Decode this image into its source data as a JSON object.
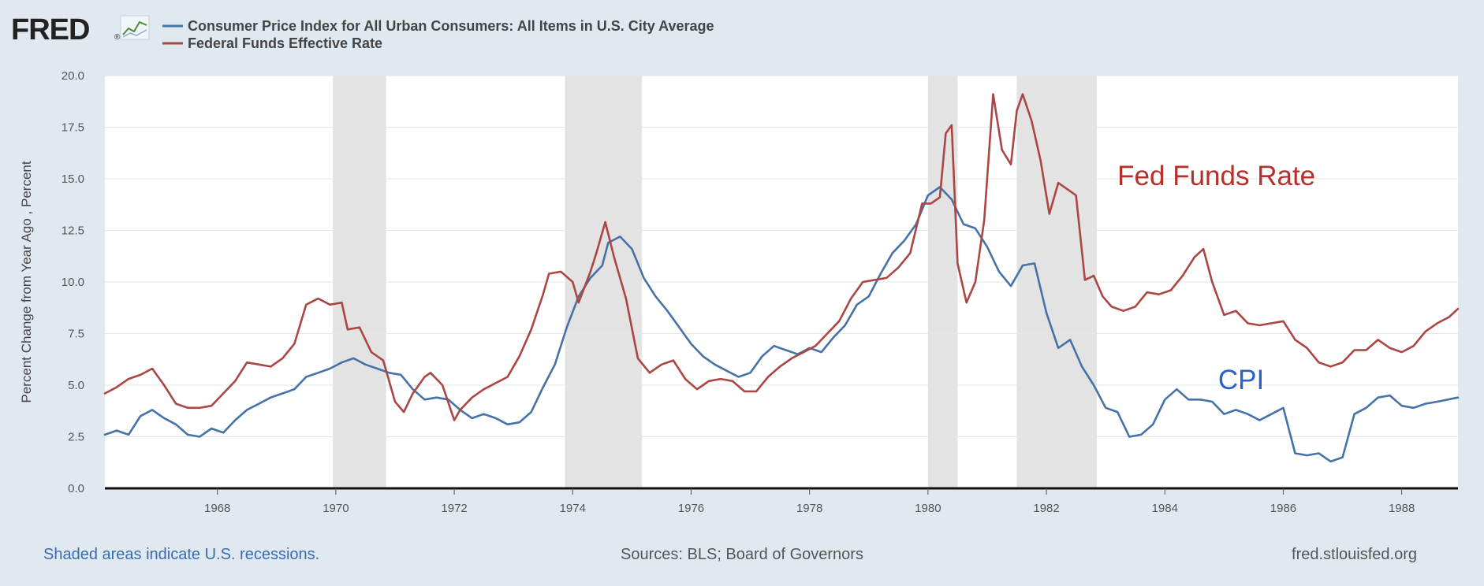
{
  "header": {
    "logo_text": "FRED",
    "logo_mark": "®",
    "logo_icon": "fred-chart-icon",
    "legend": [
      {
        "label": "Consumer Price Index for All Urban Consumers: All Items in U.S. City Average",
        "color": "#4572a7"
      },
      {
        "label": "Federal Funds Effective Rate",
        "color": "#aa4643"
      }
    ]
  },
  "footer": {
    "recession_note": "Shaded areas indicate U.S. recessions.",
    "sources": "Sources: BLS; Board of Governors",
    "site": "fred.stlouisfed.org"
  },
  "colors": {
    "background": "#e1e9f0",
    "plot": "#ffffff",
    "grid": "#e6e6e6",
    "recession": "#e3e3e3",
    "cpi": "#4572a7",
    "fedfunds": "#aa4643",
    "annot_fed": "#b5302a",
    "annot_cpi": "#2a62c9",
    "footer_link": "#3a6bb0",
    "footer_text": "#555555"
  },
  "chart_data": {
    "type": "line",
    "ylabel": "Percent Change from Year Ago , Percent",
    "xlabel": "",
    "xlim": [
      1966.1,
      1988.95
    ],
    "ylim": [
      0,
      20
    ],
    "yticks": [
      "0.0",
      "2.5",
      "5.0",
      "7.5",
      "10.0",
      "12.5",
      "15.0",
      "17.5",
      "20.0"
    ],
    "ytick_values": [
      0,
      2.5,
      5,
      7.5,
      10,
      12.5,
      15,
      17.5,
      20
    ],
    "xticks": [
      "1968",
      "1970",
      "1972",
      "1974",
      "1976",
      "1978",
      "1980",
      "1982",
      "1984",
      "1986",
      "1988"
    ],
    "xtick_values": [
      1968,
      1970,
      1972,
      1974,
      1976,
      1978,
      1980,
      1982,
      1984,
      1986,
      1988
    ],
    "grid": true,
    "recessions": [
      [
        1969.95,
        1970.85
      ],
      [
        1973.87,
        1975.17
      ],
      [
        1980.0,
        1980.5
      ],
      [
        1981.5,
        1982.85
      ]
    ],
    "annotations": [
      {
        "text": "Fed Funds Rate",
        "x": 1983.2,
        "y": 14.7,
        "series": "fedfunds"
      },
      {
        "text": "CPI",
        "x": 1984.9,
        "y": 4.8,
        "series": "cpi"
      }
    ],
    "series": [
      {
        "key": "cpi",
        "x": [
          1966.1,
          1966.3,
          1966.5,
          1966.7,
          1966.9,
          1967.1,
          1967.3,
          1967.5,
          1967.7,
          1967.9,
          1968.1,
          1968.3,
          1968.5,
          1968.7,
          1968.9,
          1969.1,
          1969.3,
          1969.5,
          1969.7,
          1969.9,
          1970.1,
          1970.3,
          1970.5,
          1970.7,
          1970.9,
          1971.1,
          1971.3,
          1971.5,
          1971.7,
          1971.9,
          1972.1,
          1972.3,
          1972.5,
          1972.7,
          1972.9,
          1973.1,
          1973.3,
          1973.5,
          1973.7,
          1973.9,
          1974.1,
          1974.3,
          1974.5,
          1974.6,
          1974.8,
          1975.0,
          1975.2,
          1975.4,
          1975.6,
          1975.8,
          1976.0,
          1976.2,
          1976.4,
          1976.6,
          1976.8,
          1977.0,
          1977.2,
          1977.4,
          1977.6,
          1977.8,
          1978.0,
          1978.2,
          1978.4,
          1978.6,
          1978.8,
          1979.0,
          1979.2,
          1979.4,
          1979.6,
          1979.8,
          1980.0,
          1980.2,
          1980.4,
          1980.6,
          1980.8,
          1981.0,
          1981.2,
          1981.4,
          1981.6,
          1981.8,
          1982.0,
          1982.2,
          1982.4,
          1982.6,
          1982.8,
          1983.0,
          1983.2,
          1983.4,
          1983.6,
          1983.8,
          1984.0,
          1984.2,
          1984.4,
          1984.6,
          1984.8,
          1985.0,
          1985.2,
          1985.4,
          1985.6,
          1985.8,
          1986.0,
          1986.2,
          1986.4,
          1986.6,
          1986.8,
          1987.0,
          1987.2,
          1987.4,
          1987.6,
          1987.8,
          1988.0,
          1988.2,
          1988.4,
          1988.6,
          1988.95
        ],
        "values": [
          2.6,
          2.8,
          2.6,
          3.5,
          3.8,
          3.4,
          3.1,
          2.6,
          2.5,
          2.9,
          2.7,
          3.3,
          3.8,
          4.1,
          4.4,
          4.6,
          4.8,
          5.4,
          5.6,
          5.8,
          6.1,
          6.3,
          6.0,
          5.8,
          5.6,
          5.5,
          4.8,
          4.3,
          4.4,
          4.3,
          3.8,
          3.4,
          3.6,
          3.4,
          3.1,
          3.2,
          3.7,
          4.9,
          6.0,
          7.8,
          9.3,
          10.2,
          10.8,
          11.9,
          12.2,
          11.6,
          10.2,
          9.3,
          8.6,
          7.8,
          7.0,
          6.4,
          6.0,
          5.7,
          5.4,
          5.6,
          6.4,
          6.9,
          6.7,
          6.5,
          6.8,
          6.6,
          7.3,
          7.9,
          8.9,
          9.3,
          10.4,
          11.4,
          12.0,
          12.8,
          14.2,
          14.6,
          14.0,
          12.8,
          12.6,
          11.7,
          10.5,
          9.8,
          10.8,
          10.9,
          8.5,
          6.8,
          7.2,
          5.9,
          5.0,
          3.9,
          3.7,
          2.5,
          2.6,
          3.1,
          4.3,
          4.8,
          4.3,
          4.3,
          4.2,
          3.6,
          3.8,
          3.6,
          3.3,
          3.6,
          3.9,
          1.7,
          1.6,
          1.7,
          1.3,
          1.5,
          3.6,
          3.9,
          4.4,
          4.5,
          4.0,
          3.9,
          4.1,
          4.2,
          4.4
        ]
      },
      {
        "key": "fedfunds",
        "x": [
          1966.1,
          1966.3,
          1966.5,
          1966.7,
          1966.9,
          1967.1,
          1967.3,
          1967.5,
          1967.7,
          1967.9,
          1968.1,
          1968.3,
          1968.5,
          1968.7,
          1968.9,
          1969.1,
          1969.3,
          1969.5,
          1969.7,
          1969.9,
          1970.1,
          1970.2,
          1970.4,
          1970.6,
          1970.8,
          1971.0,
          1971.15,
          1971.3,
          1971.5,
          1971.6,
          1971.8,
          1972.0,
          1972.1,
          1972.3,
          1972.5,
          1972.7,
          1972.9,
          1973.1,
          1973.3,
          1973.5,
          1973.6,
          1973.8,
          1974.0,
          1974.1,
          1974.3,
          1974.4,
          1974.55,
          1974.7,
          1974.9,
          1975.1,
          1975.3,
          1975.5,
          1975.7,
          1975.9,
          1976.1,
          1976.3,
          1976.5,
          1976.7,
          1976.9,
          1977.1,
          1977.3,
          1977.5,
          1977.7,
          1977.9,
          1978.1,
          1978.3,
          1978.5,
          1978.7,
          1978.9,
          1979.1,
          1979.3,
          1979.5,
          1979.7,
          1979.9,
          1980.05,
          1980.2,
          1980.3,
          1980.4,
          1980.5,
          1980.65,
          1980.8,
          1980.95,
          1981.1,
          1981.25,
          1981.4,
          1981.5,
          1981.6,
          1981.75,
          1981.9,
          1982.05,
          1982.2,
          1982.35,
          1982.5,
          1982.65,
          1982.8,
          1982.95,
          1983.1,
          1983.3,
          1983.5,
          1983.7,
          1983.9,
          1984.1,
          1984.3,
          1984.5,
          1984.65,
          1984.8,
          1985.0,
          1985.2,
          1985.4,
          1985.6,
          1985.8,
          1986.0,
          1986.2,
          1986.4,
          1986.6,
          1986.8,
          1987.0,
          1987.2,
          1987.4,
          1987.6,
          1987.8,
          1988.0,
          1988.2,
          1988.4,
          1988.6,
          1988.8,
          1988.95
        ],
        "values": [
          4.6,
          4.9,
          5.3,
          5.5,
          5.8,
          5.0,
          4.1,
          3.9,
          3.9,
          4.0,
          4.6,
          5.2,
          6.1,
          6.0,
          5.9,
          6.3,
          7.0,
          8.9,
          9.2,
          8.9,
          9.0,
          7.7,
          7.8,
          6.6,
          6.2,
          4.2,
          3.7,
          4.6,
          5.4,
          5.6,
          5.0,
          3.3,
          3.8,
          4.4,
          4.8,
          5.1,
          5.4,
          6.4,
          7.7,
          9.4,
          10.4,
          10.5,
          10.0,
          9.0,
          10.5,
          11.4,
          12.9,
          11.2,
          9.2,
          6.3,
          5.6,
          6.0,
          6.2,
          5.3,
          4.8,
          5.2,
          5.3,
          5.2,
          4.7,
          4.7,
          5.4,
          5.9,
          6.3,
          6.6,
          6.9,
          7.5,
          8.1,
          9.2,
          10.0,
          10.1,
          10.2,
          10.7,
          11.4,
          13.8,
          13.8,
          14.1,
          17.2,
          17.6,
          10.9,
          9.0,
          10.0,
          13.0,
          19.1,
          16.4,
          15.7,
          18.3,
          19.1,
          17.8,
          15.9,
          13.3,
          14.8,
          14.5,
          14.2,
          10.1,
          10.3,
          9.3,
          8.8,
          8.6,
          8.8,
          9.5,
          9.4,
          9.6,
          10.3,
          11.2,
          11.6,
          10.0,
          8.4,
          8.6,
          8.0,
          7.9,
          8.0,
          8.1,
          7.2,
          6.8,
          6.1,
          5.9,
          6.1,
          6.7,
          6.7,
          7.2,
          6.8,
          6.6,
          6.9,
          7.6,
          8.0,
          8.3,
          8.7
        ]
      }
    ]
  }
}
